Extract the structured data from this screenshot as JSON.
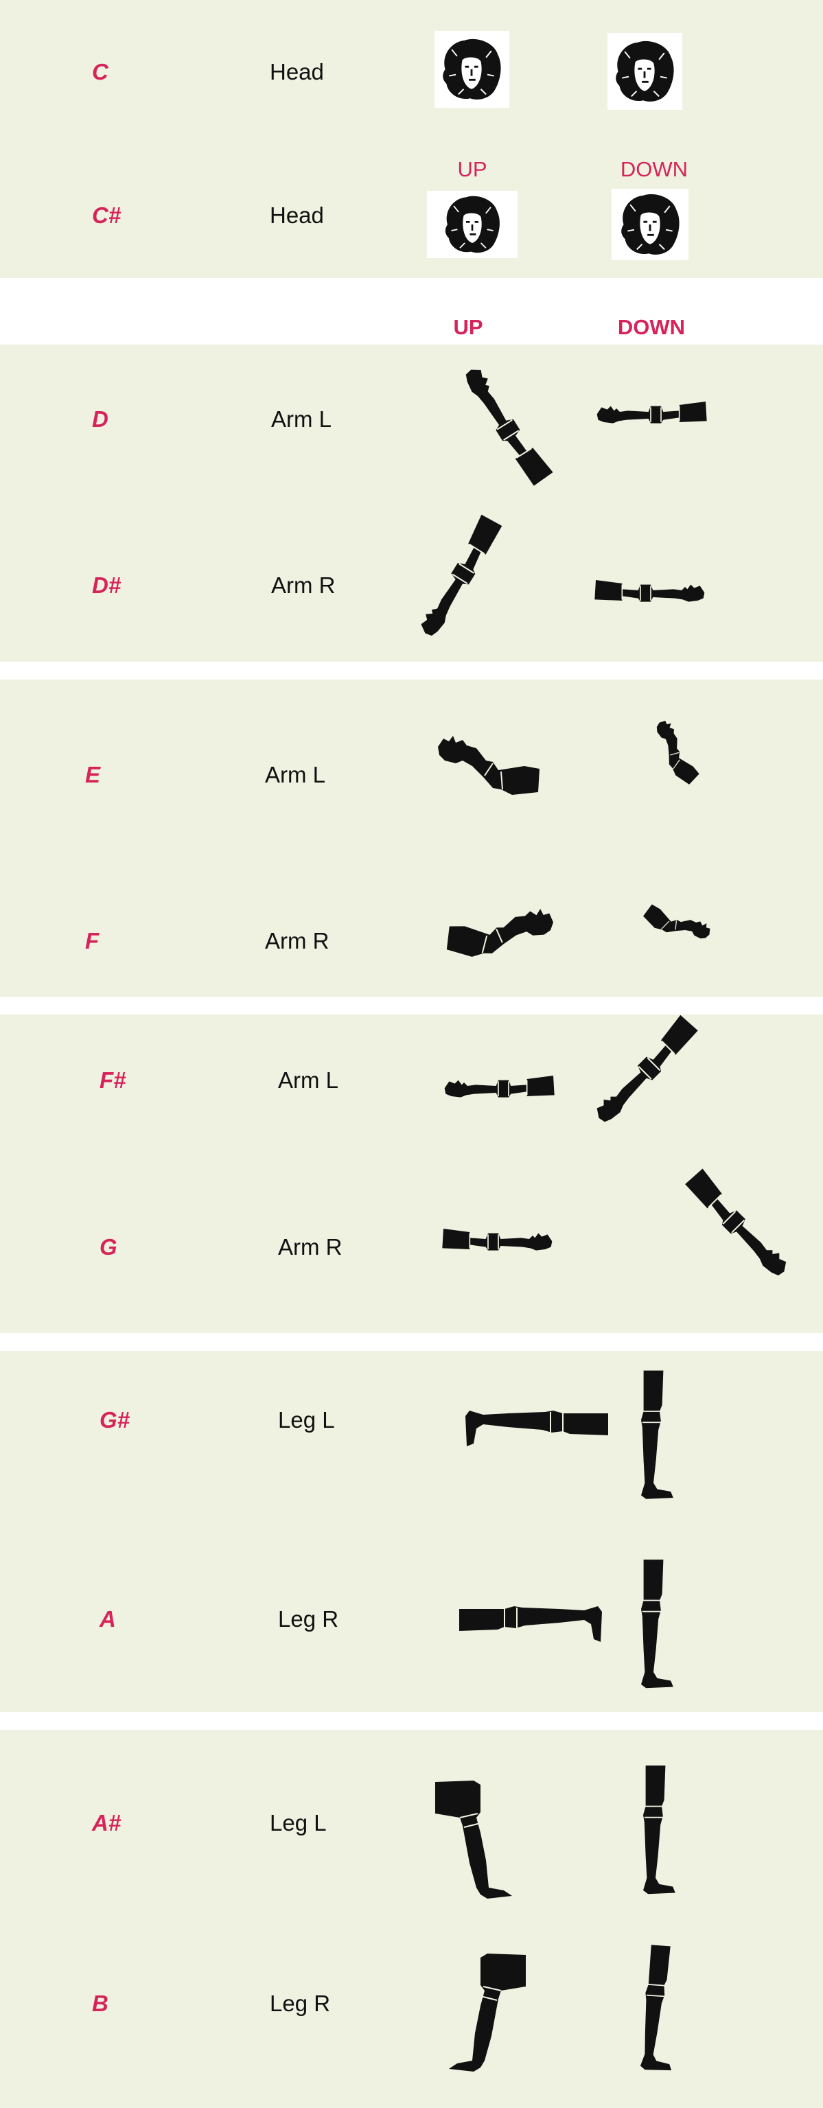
{
  "head_section": {
    "rows": [
      {
        "note": "C",
        "part": "Head"
      },
      {
        "note": "C#",
        "part": "Head"
      }
    ],
    "up_label": "UP",
    "down_label": "DOWN"
  },
  "column_headers": {
    "up": "UP",
    "down": "DOWN"
  },
  "groups": [
    {
      "rows": [
        {
          "note": "D",
          "part": "Arm L"
        },
        {
          "note": "D#",
          "part": "Arm R"
        }
      ]
    },
    {
      "rows": [
        {
          "note": "E",
          "part": "Arm L"
        },
        {
          "note": "F",
          "part": "Arm R"
        }
      ]
    },
    {
      "rows": [
        {
          "note": "F#",
          "part": "Arm L"
        },
        {
          "note": "G",
          "part": "Arm R"
        }
      ]
    },
    {
      "rows": [
        {
          "note": "G#",
          "part": "Leg L"
        },
        {
          "note": "A",
          "part": "Leg R"
        }
      ]
    },
    {
      "rows": [
        {
          "note": "A#",
          "part": "Leg L"
        },
        {
          "note": "B",
          "part": "Leg R"
        }
      ]
    }
  ],
  "colors": {
    "accent": "#d6245a",
    "panel": "#eff2e1",
    "ink": "#111111"
  },
  "icons": {
    "head": "head-silhouette-icon",
    "arm": "arm-silhouette-icon",
    "leg": "leg-silhouette-icon"
  }
}
